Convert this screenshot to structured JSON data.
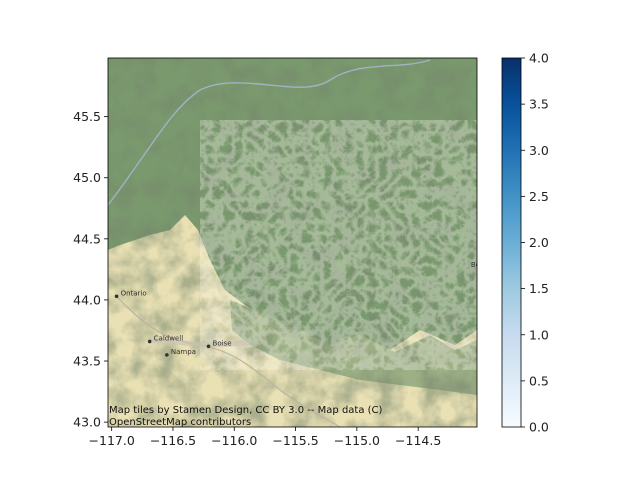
{
  "map": {
    "x_ticks": [
      "−117.0",
      "−116.5",
      "−116.0",
      "−115.5",
      "−115.0",
      "−114.5"
    ],
    "x_tick_values": [
      -117.0,
      -116.5,
      -116.0,
      -115.5,
      -115.0,
      -114.5
    ],
    "y_ticks": [
      "43.0",
      "43.5",
      "44.0",
      "44.5",
      "45.0",
      "45.5"
    ],
    "y_tick_values": [
      43.0,
      43.5,
      44.0,
      44.5,
      45.0,
      45.5
    ],
    "x_range": [
      -117.03,
      -114.02
    ],
    "y_range": [
      42.96,
      45.98
    ],
    "places": [
      {
        "name": "Ontario",
        "lon": -116.96,
        "lat": 44.03
      },
      {
        "name": "Caldwell",
        "lon": -116.69,
        "lat": 43.66
      },
      {
        "name": "Nampa",
        "lon": -116.55,
        "lat": 43.55
      },
      {
        "name": "Boise",
        "lon": -116.21,
        "lat": 43.62
      }
    ],
    "edge_labels": [
      {
        "name": "Bo",
        "lon": -114.07,
        "lat": 44.27
      }
    ],
    "attribution_line1": "Map tiles by Stamen Design, CC BY 3.0 -- Map data (C)",
    "attribution_line2": "OpenStreetMap contributors",
    "colors": {
      "plain": "#e9e0b4",
      "forest": "#7a9a6e",
      "forest_dark": "#5f7f58",
      "water": "#9fb3c4"
    }
  },
  "colorbar": {
    "colormap": "Blues",
    "ticks": [
      "0.0",
      "0.5",
      "1.0",
      "1.5",
      "2.0",
      "2.5",
      "3.0",
      "3.5",
      "4.0"
    ],
    "tick_values": [
      0.0,
      0.5,
      1.0,
      1.5,
      2.0,
      2.5,
      3.0,
      3.5,
      4.0
    ],
    "range": [
      0.0,
      4.0
    ]
  }
}
